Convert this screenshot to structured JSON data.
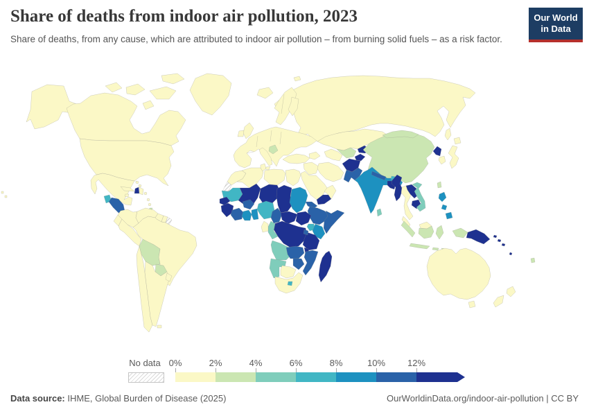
{
  "header": {
    "title": "Share of deaths from indoor air pollution, 2023",
    "subtitle": "Share of deaths, from any cause, which are attributed to indoor air pollution – from burning solid fuels – as a risk factor."
  },
  "logo": {
    "line1": "Our World",
    "line2": "in Data",
    "bg_color": "#1d3d63",
    "accent_color": "#b5302c"
  },
  "legend": {
    "no_data_label": "No data",
    "tick_labels": [
      "0%",
      "2%",
      "4%",
      "6%",
      "8%",
      "10%",
      "12%"
    ],
    "bin_colors": [
      "#fbf8c6",
      "#cbe6b2",
      "#7fcdbb",
      "#41b6c4",
      "#1d91c0",
      "#2a62a8",
      "#1e3190"
    ]
  },
  "footer": {
    "source_label": "Data source:",
    "source_text": " IHME, Global Burden of Disease (2025)",
    "attribution": "OurWorldinData.org/indoor-air-pollution | CC BY"
  },
  "chart_data": {
    "type": "heatmap",
    "subtype": "choropleth-world-map",
    "title": "Share of deaths from indoor air pollution, 2023",
    "unit": "%",
    "bins": [
      "0-2%",
      "2-4%",
      "4-6%",
      "6-8%",
      "8-10%",
      "10-12%",
      "12%+",
      "No data"
    ],
    "legend_position": "bottom",
    "series": [
      {
        "name": "0-2%",
        "members": [
          "United States",
          "Canada",
          "Greenland",
          "Mexico",
          "Brazil",
          "Argentina",
          "Chile",
          "Peru",
          "Colombia",
          "Venezuela",
          "Europe",
          "Russia",
          "Kazakhstan",
          "Turkey",
          "Iran",
          "Saudi Arabia",
          "Oman",
          "North Africa",
          "Egypt",
          "Libya",
          "Algeria",
          "Morocco",
          "Gabon",
          "Botswana",
          "South Africa",
          "South Korea",
          "Japan",
          "Thailand",
          "Malaysia",
          "Australia",
          "New Zealand"
        ]
      },
      {
        "name": "2-4%",
        "members": [
          "Bolivia",
          "Paraguay",
          "China",
          "Mongolia",
          "Uzbekistan",
          "Indonesia",
          "Taiwan",
          "Bosnia and Serbia",
          "Fiji",
          "Trinidad and Tobago"
        ]
      },
      {
        "name": "4-6%",
        "members": [
          "Vietnam",
          "Sri Lanka",
          "Congo",
          "Angola",
          "Namibia"
        ]
      },
      {
        "name": "6-8%",
        "members": [
          "Guatemala",
          "Mauritania",
          "Nigeria",
          "Uganda",
          "Lesotho",
          "Bhutan"
        ]
      },
      {
        "name": "8-10%",
        "members": [
          "India",
          "Philippines",
          "Sudan",
          "Ghana",
          "Togo",
          "Benin",
          "Kenya"
        ]
      },
      {
        "name": "10-12%",
        "members": [
          "Honduras",
          "Nicaragua",
          "Pakistan",
          "Nepal",
          "Burkina Faso",
          "Cote d'Ivoire",
          "Cameroon",
          "Eritrea",
          "Ethiopia",
          "Somalia",
          "Zambia",
          "Zimbabwe",
          "Mozambique",
          "Rwanda",
          "Burundi"
        ]
      },
      {
        "name": "12%+",
        "members": [
          "Haiti",
          "Yemen",
          "Mali",
          "Niger",
          "Chad",
          "Senegal",
          "Guinea",
          "Sierra Leone",
          "Liberia",
          "Central African Republic",
          "South Sudan",
          "DR Congo",
          "Tanzania",
          "Malawi",
          "Madagascar",
          "Afghanistan",
          "Tajikistan",
          "Kyrgyzstan",
          "Bangladesh",
          "North Korea",
          "Myanmar",
          "Laos",
          "Cambodia",
          "Papua New Guinea",
          "Solomon Islands",
          "Vanuatu"
        ]
      },
      {
        "name": "No data",
        "members": [
          "Western Sahara",
          "French Guiana"
        ]
      }
    ]
  },
  "map": {
    "regions": {
      "alaska": 0,
      "canada": 0,
      "arctic-islands": 0,
      "greenland": 0,
      "usa": 0,
      "mexico": 0,
      "guatemala": 3,
      "honduras-nicaragua": 5,
      "costa-rica-panama": 0,
      "cuba": 0,
      "haiti": 6,
      "dominican-republic": 0,
      "jamaica": 0,
      "bahamas": 0,
      "lesser-antilles": 0,
      "trinidad": 1,
      "hawaii": 0,
      "colombia": 0,
      "venezuela": 0,
      "guyana": 0,
      "suriname": 0,
      "french-guiana": "nd",
      "brazil": 0,
      "ecuador": 0,
      "peru": 0,
      "bolivia": 1,
      "paraguay": 1,
      "chile": 0,
      "argentina": 0,
      "uruguay": 0,
      "falklands": 0,
      "iceland": 0,
      "uk": 0,
      "ireland": 0,
      "scandinavia": 0,
      "finland": 0,
      "europe-mainland": 0,
      "italy": 0,
      "sicily": 0,
      "balkans": 1,
      "svalbard": 0,
      "russia": 0,
      "kazakhstan": 0,
      "caucasus": 0,
      "turkey": 0,
      "syria-iraq": 0,
      "iran": 0,
      "saudi-arabia": 0,
      "yemen": 6,
      "oman": 0,
      "turkmenistan": 0,
      "uzbekistan": 1,
      "kyrgyzstan": 6,
      "tajikistan": 6,
      "afghanistan": 6,
      "pakistan": 5,
      "india": 4,
      "nepal": 5,
      "bhutan": 3,
      "bangladesh": 6,
      "sri-lanka": 2,
      "china": 1,
      "mongolia": 1,
      "taiwan": 1,
      "north-korea": 6,
      "south-korea": 0,
      "japan": 0,
      "sakhalin": 0,
      "myanmar": 6,
      "thailand": 0,
      "laos": 6,
      "cambodia": 6,
      "vietnam": 2,
      "malaysia": 0,
      "malaysia-borneo": 0,
      "sumatra": 1,
      "java": 1,
      "borneo-indonesia": 1,
      "sulawesi": 1,
      "lesser-sunda": 1,
      "west-papua": 1,
      "papua-new-guinea": 6,
      "philippines": 4,
      "solomon-islands": 6,
      "vanuatu": 6,
      "fiji": 1,
      "australia": 0,
      "tasmania": 0,
      "new-zealand": 0,
      "morocco": 0,
      "western-sahara": "nd",
      "algeria": 0,
      "tunisia": 0,
      "libya": 0,
      "egypt": 0,
      "mauritania": 3,
      "mali": 6,
      "niger": 6,
      "chad": 6,
      "sudan": 4,
      "eritrea": 5,
      "ethiopia": 5,
      "somalia": 5,
      "senegal": 6,
      "guinea-group": 6,
      "burkina-faso": 5,
      "cote-divoire": 5,
      "ghana": 4,
      "togo-benin": 4,
      "nigeria": 3,
      "cameroon": 5,
      "central-african-republic": 6,
      "south-sudan": 6,
      "uganda": 3,
      "kenya": 4,
      "dr-congo": 6,
      "congo": 2,
      "gabon": 0,
      "tanzania": 6,
      "rwanda-burundi": 5,
      "angola": 2,
      "zambia": 5,
      "malawi": 6,
      "mozambique": 5,
      "zimbabwe": 5,
      "namibia": 2,
      "botswana": 0,
      "south-africa": 0,
      "lesotho": 3,
      "madagascar": 6
    }
  }
}
